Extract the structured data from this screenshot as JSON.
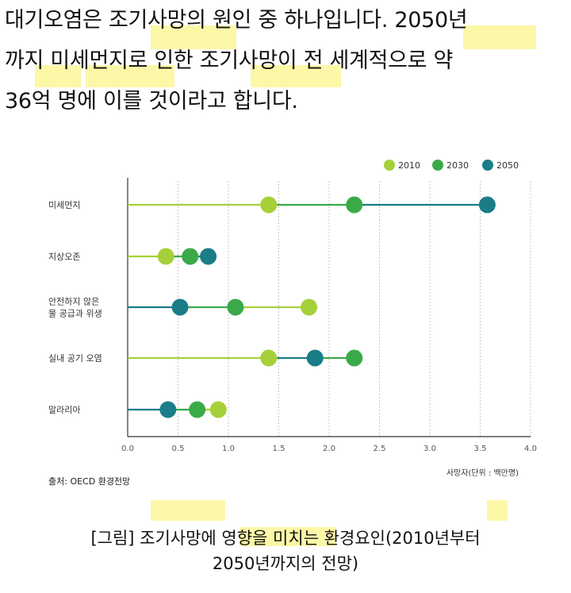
{
  "intro": {
    "lines": [
      "대기오염은 조기사망의 원인 중 하나입니다. 2050년",
      "까지 미세먼지로 인한 조기사망이 전 세계적으로 약",
      "36억 명에 이를 것이라고 합니다."
    ]
  },
  "colors": {
    "c2010": "#a6d03a",
    "c2030": "#3aaa48",
    "c2050": "#1a7d88",
    "highlight": "#fdf7a8"
  },
  "chart_data": {
    "type": "dot",
    "categories": [
      "미세먼지",
      "지상오존",
      "안전하지 않은\n물 공급과 위생",
      "실내 공기 오염",
      "말라리아"
    ],
    "series": [
      {
        "name": "2010",
        "values": [
          1.4,
          0.38,
          1.8,
          1.4,
          0.9
        ]
      },
      {
        "name": "2030",
        "values": [
          2.25,
          0.62,
          1.07,
          2.25,
          0.69
        ]
      },
      {
        "name": "2050",
        "values": [
          3.57,
          0.8,
          0.52,
          1.86,
          0.4
        ]
      }
    ],
    "xticks": [
      "0.0",
      "0.5",
      "1.0",
      "1.5",
      "2.0",
      "2.5",
      "3.0",
      "3.5",
      "4.0"
    ],
    "xlim": [
      0,
      4
    ],
    "xlabel": "사망자(단위 : 백만명)",
    "legend_position": "top-right",
    "grid": "vertical"
  },
  "source": "출처: OECD 환경전망",
  "caption": {
    "line1": "[그림] 조기사망에 영향을 미치는 환경요인(2010년부터",
    "line2": "2050년까지의 전망)"
  }
}
